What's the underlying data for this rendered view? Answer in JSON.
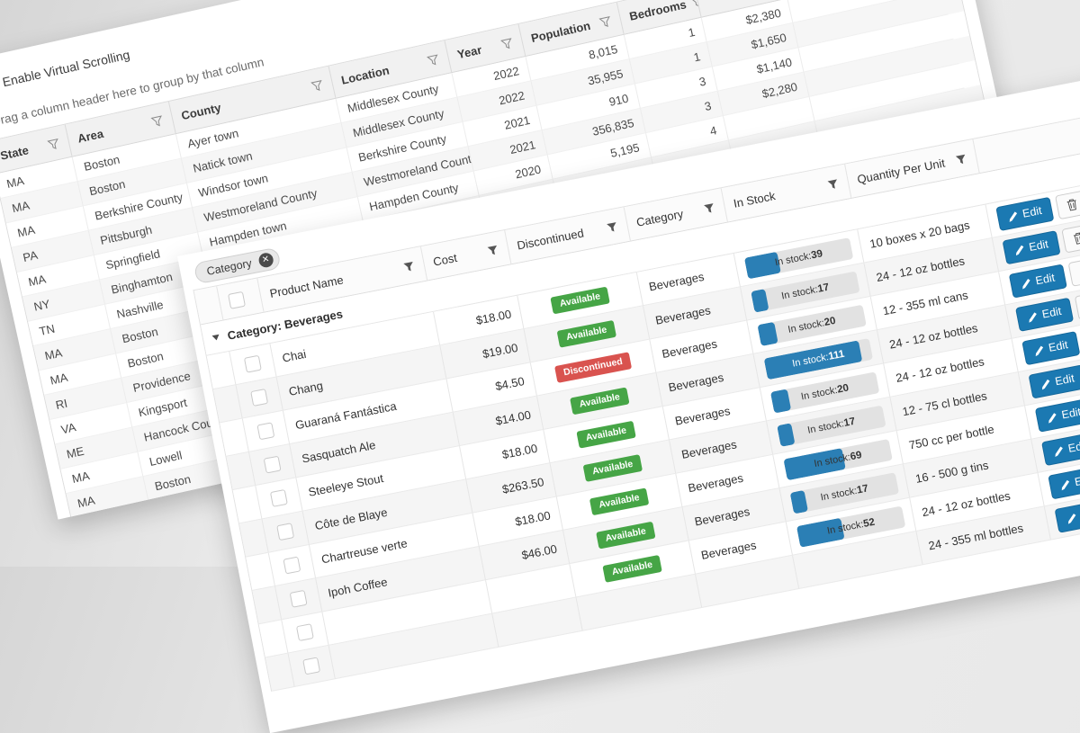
{
  "page": {
    "background_gray": "#e8e8e8"
  },
  "left_card": {
    "toolbar": {
      "checkbox_label": "Enable Virtual Scrolling"
    },
    "group_hint": "Drag a column header here to group by that column",
    "columns": [
      {
        "field": "state",
        "label": "State",
        "align": "left"
      },
      {
        "field": "area",
        "label": "Area",
        "align": "left"
      },
      {
        "field": "county",
        "label": "County",
        "align": "left"
      },
      {
        "field": "location",
        "label": "Location",
        "align": "left"
      },
      {
        "field": "year",
        "label": "Year",
        "align": "right"
      },
      {
        "field": "population",
        "label": "Population",
        "align": "right"
      },
      {
        "field": "bedrooms",
        "label": "Bedrooms",
        "align": "right"
      },
      {
        "field": "price",
        "label": "",
        "align": "right"
      }
    ],
    "rows": [
      {
        "state": "MA",
        "area": "Boston",
        "county": "Ayer town",
        "location": "Middlesex County",
        "year": "2022",
        "population": "8,015",
        "bedrooms": "1",
        "price": "$2,380"
      },
      {
        "state": "MA",
        "area": "Boston",
        "county": "Natick town",
        "location": "Middlesex County",
        "year": "2022",
        "population": "35,955",
        "bedrooms": "1",
        "price": "$1,650"
      },
      {
        "state": "MA",
        "area": "Berkshire County",
        "county": "Windsor town",
        "location": "Berkshire County",
        "year": "2021",
        "population": "910",
        "bedrooms": "3",
        "price": "$1,140"
      },
      {
        "state": "PA",
        "area": "Pittsburgh",
        "county": "Westmoreland County",
        "location": "Westmoreland County",
        "year": "2021",
        "population": "356,835",
        "bedrooms": "3",
        "price": "$2,280"
      },
      {
        "state": "MA",
        "area": "Springfield",
        "county": "Hampden town",
        "location": "Hampden County",
        "year": "2020",
        "population": "5,195",
        "bedrooms": "4",
        "price": ""
      },
      {
        "state": "NY",
        "area": "Binghamton",
        "county": "",
        "location": "",
        "year": "",
        "population": "",
        "bedrooms": "",
        "price": ""
      },
      {
        "state": "TN",
        "area": "Nashville",
        "county": "",
        "location": "",
        "year": "",
        "population": "",
        "bedrooms": "",
        "price": ""
      },
      {
        "state": "MA",
        "area": "Boston",
        "county": "",
        "location": "",
        "year": "",
        "population": "",
        "bedrooms": "",
        "price": ""
      },
      {
        "state": "MA",
        "area": "Boston",
        "county": "",
        "location": "",
        "year": "",
        "population": "",
        "bedrooms": "",
        "price": ""
      },
      {
        "state": "RI",
        "area": "Providence",
        "county": "",
        "location": "",
        "year": "",
        "population": "",
        "bedrooms": "",
        "price": ""
      },
      {
        "state": "VA",
        "area": "Kingsport",
        "county": "",
        "location": "",
        "year": "",
        "population": "",
        "bedrooms": "",
        "price": ""
      },
      {
        "state": "ME",
        "area": "Hancock County",
        "county": "",
        "location": "",
        "year": "",
        "population": "",
        "bedrooms": "",
        "price": ""
      },
      {
        "state": "MA",
        "area": "Lowell",
        "county": "",
        "location": "",
        "year": "",
        "population": "",
        "bedrooms": "",
        "price": ""
      },
      {
        "state": "MA",
        "area": "Boston",
        "county": "",
        "location": "",
        "year": "",
        "population": "",
        "bedrooms": "",
        "price": ""
      }
    ]
  },
  "right_card": {
    "group_chip": {
      "label": "Category",
      "remove_glyph": "✕"
    },
    "group_row": {
      "label": "Category: Beverages"
    },
    "columns": [
      {
        "field": "product",
        "label": "Product Name",
        "align": "left"
      },
      {
        "field": "cost",
        "label": "Cost",
        "align": "right"
      },
      {
        "field": "status",
        "label": "Discontinued",
        "align": "center"
      },
      {
        "field": "category",
        "label": "Category",
        "align": "left"
      },
      {
        "field": "stock",
        "label": "In Stock",
        "align": "left"
      },
      {
        "field": "qpu",
        "label": "Quantity Per Unit",
        "align": "left"
      },
      {
        "field": "commands",
        "label": "",
        "align": "left"
      }
    ],
    "buttons": {
      "edit": "Edit",
      "delete": "Delete"
    },
    "stock_prefix": "In stock:",
    "stock_max": 124,
    "status_colors": {
      "Available": "#46a546",
      "Discontinued": "#d9534f"
    },
    "bar_color": "#2b7fb5",
    "rows": [
      {
        "product": "Chai",
        "cost": "$18.00",
        "status": "Available",
        "category": "Beverages",
        "stock": 39,
        "qpu": "10 boxes x 20 bags"
      },
      {
        "product": "Chang",
        "cost": "$19.00",
        "status": "Available",
        "category": "Beverages",
        "stock": 17,
        "qpu": "24 - 12 oz bottles"
      },
      {
        "product": "Guaraná Fantástica",
        "cost": "$4.50",
        "status": "Discontinued",
        "category": "Beverages",
        "stock": 20,
        "qpu": "12 - 355 ml cans"
      },
      {
        "product": "Sasquatch Ale",
        "cost": "$14.00",
        "status": "Available",
        "category": "Beverages",
        "stock": 111,
        "qpu": "24 - 12 oz bottles"
      },
      {
        "product": "Steeleye Stout",
        "cost": "$18.00",
        "status": "Available",
        "category": "Beverages",
        "stock": 20,
        "qpu": "24 - 12 oz bottles"
      },
      {
        "product": "Côte de Blaye",
        "cost": "$263.50",
        "status": "Available",
        "category": "Beverages",
        "stock": 17,
        "qpu": "12 - 75 cl bottles"
      },
      {
        "product": "Chartreuse verte",
        "cost": "$18.00",
        "status": "Available",
        "category": "Beverages",
        "stock": 69,
        "qpu": "750 cc per bottle"
      },
      {
        "product": "Ipoh Coffee",
        "cost": "$46.00",
        "status": "Available",
        "category": "Beverages",
        "stock": 17,
        "qpu": "16 - 500 g tins"
      },
      {
        "product": "",
        "cost": "",
        "status": "Available",
        "category": "Beverages",
        "stock": 52,
        "qpu": "24 - 12 oz bottles"
      },
      {
        "product": "",
        "cost": "",
        "status": "",
        "category": "",
        "stock": null,
        "qpu": "24 - 355 ml bottles"
      }
    ]
  }
}
